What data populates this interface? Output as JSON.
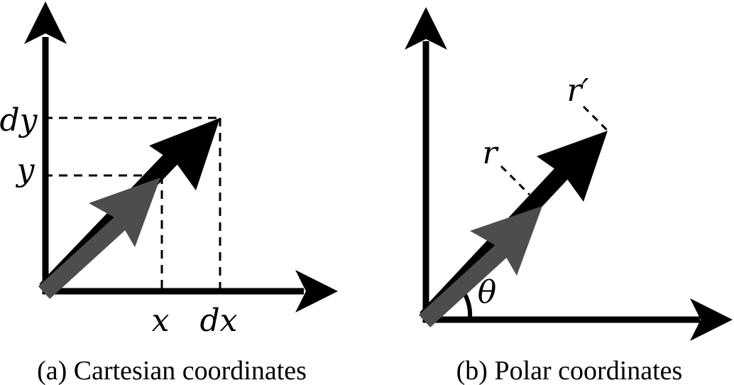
{
  "panels": [
    {
      "caption": "(a) Cartesian coordinates",
      "labels": {
        "dy": "dy",
        "y": "y",
        "x": "x",
        "dx": "dx"
      }
    },
    {
      "caption": "(b) Polar coordinates",
      "labels": {
        "r_prime": "r′",
        "r": "r",
        "theta": "θ"
      }
    }
  ],
  "colors": {
    "axis": "#000000",
    "vector_original": "#4d4d4d",
    "vector_scaled": "#000000",
    "background": "#ffffff"
  }
}
